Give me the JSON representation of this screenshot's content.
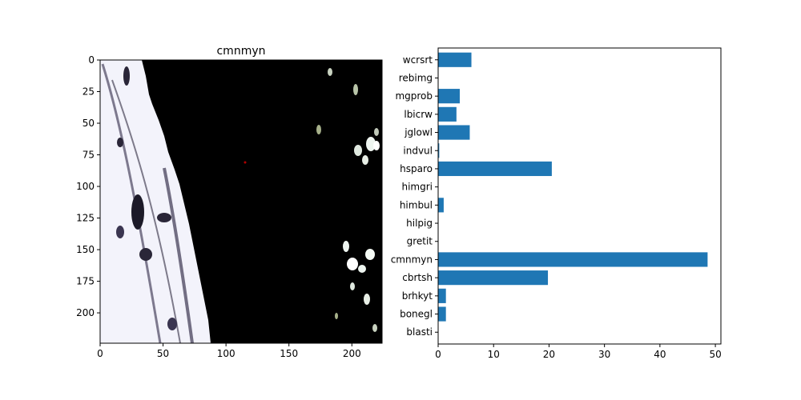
{
  "chart_data": [
    {
      "type": "image",
      "title": "cmnmyn",
      "xlim": [
        0,
        224
      ],
      "ylim": [
        224,
        0
      ],
      "xticks": [
        0,
        50,
        100,
        150,
        200
      ],
      "yticks": [
        0,
        25,
        50,
        75,
        100,
        125,
        150,
        175,
        200
      ],
      "colors": {
        "background": "#000000",
        "tissue_light": "#f2f2ff",
        "tissue_dark": "#3a3550",
        "spots": "#eef5f0"
      }
    },
    {
      "type": "bar",
      "orientation": "horizontal",
      "categories": [
        "blasti",
        "bonegl",
        "brhkyt",
        "cbrtsh",
        "cmnmyn",
        "gretit",
        "hilpig",
        "himbul",
        "himgri",
        "hsparo",
        "indvul",
        "jglowl",
        "lbicrw",
        "mgprob",
        "rebimg",
        "wcrsrt"
      ],
      "values": [
        0,
        1.4,
        1.4,
        19.8,
        48.6,
        0,
        0,
        1.0,
        0,
        20.5,
        0.2,
        5.7,
        3.3,
        3.9,
        0,
        6.0
      ],
      "xlim": [
        0,
        51
      ],
      "xticks": [
        0,
        10,
        20,
        30,
        40,
        50
      ],
      "grid": false,
      "colors": {
        "bar": "#1f77b4"
      }
    }
  ]
}
